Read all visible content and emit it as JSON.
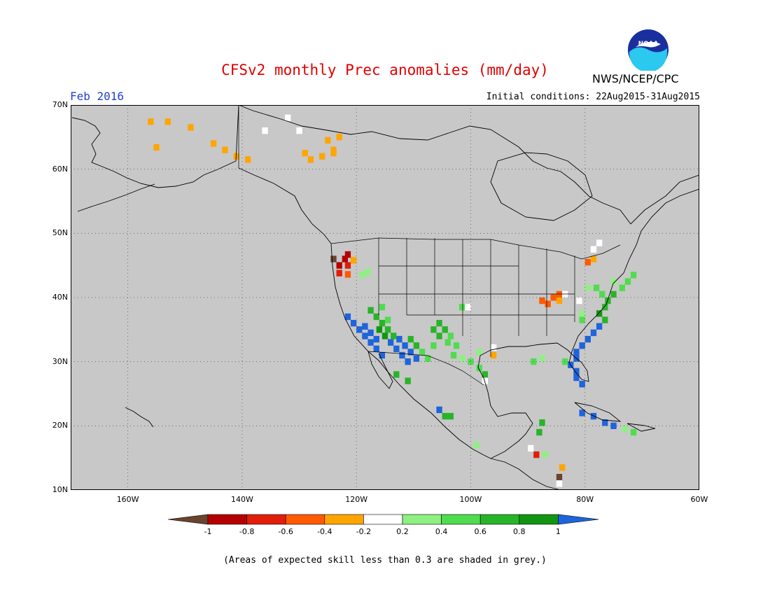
{
  "title": "CFSv2 monthly Prec anomalies (mm/day)",
  "month": "Feb 2016",
  "initial_conditions": "Initial conditions: 22Aug2015-31Aug2015",
  "agency": "NWS/NCEP/CPC",
  "logo_text": "NOAA",
  "skill_note": "(Areas of expected skill less than 0.3 are shaded in grey.)",
  "map": {
    "lon_range": [
      -170,
      -60
    ],
    "lat_range": [
      10,
      70
    ],
    "lat_labels": [
      "70N",
      "60N",
      "50N",
      "40N",
      "30N",
      "20N",
      "10N"
    ],
    "lat_values": [
      70,
      60,
      50,
      40,
      30,
      20,
      10
    ],
    "lon_labels": [
      "160W",
      "140W",
      "120W",
      "100W",
      "80W",
      "60W"
    ],
    "lon_values": [
      -160,
      -140,
      -120,
      -100,
      -80,
      -60
    ],
    "gridlines": true,
    "background_color": "#c8c8c8",
    "cells": [
      {
        "lon": -156,
        "lat": 67.4,
        "v": -0.3
      },
      {
        "lon": -153,
        "lat": 67.4,
        "v": -0.3
      },
      {
        "lon": -149,
        "lat": 66.5,
        "v": -0.3
      },
      {
        "lon": -155,
        "lat": 63.4,
        "v": -0.3
      },
      {
        "lon": -136,
        "lat": 66,
        "v": 0
      },
      {
        "lon": -130,
        "lat": 66,
        "v": 0
      },
      {
        "lon": -132,
        "lat": 68,
        "v": 0
      },
      {
        "lon": -145,
        "lat": 64,
        "v": -0.3
      },
      {
        "lon": -143,
        "lat": 63,
        "v": -0.3
      },
      {
        "lon": -141,
        "lat": 62,
        "v": -0.3
      },
      {
        "lon": -139,
        "lat": 61.5,
        "v": -0.3
      },
      {
        "lon": -129,
        "lat": 62.5,
        "v": -0.3
      },
      {
        "lon": -128,
        "lat": 61.5,
        "v": -0.3
      },
      {
        "lon": -126,
        "lat": 62,
        "v": -0.3
      },
      {
        "lon": -124,
        "lat": 63,
        "v": -0.3
      },
      {
        "lon": -125,
        "lat": 64.5,
        "v": -0.3
      },
      {
        "lon": -123,
        "lat": 65,
        "v": -0.3
      },
      {
        "lon": -124,
        "lat": 62.5,
        "v": -0.3
      },
      {
        "lon": -124,
        "lat": 46,
        "v": -1
      },
      {
        "lon": -123,
        "lat": 45,
        "v": -0.9
      },
      {
        "lon": -123,
        "lat": 43.8,
        "v": -0.7
      },
      {
        "lon": -122,
        "lat": 46,
        "v": -0.9
      },
      {
        "lon": -121.5,
        "lat": 45,
        "v": -0.7
      },
      {
        "lon": -121.5,
        "lat": 43.6,
        "v": -0.5
      },
      {
        "lon": -120.5,
        "lat": 45.8,
        "v": -0.3
      },
      {
        "lon": -121.5,
        "lat": 46.7,
        "v": -0.9
      },
      {
        "lon": -119,
        "lat": 43.5,
        "v": 0.3
      },
      {
        "lon": -118,
        "lat": 44,
        "v": 0.3
      },
      {
        "lon": -121.5,
        "lat": 37,
        "v": 1
      },
      {
        "lon": -120.5,
        "lat": 36,
        "v": 1
      },
      {
        "lon": -119.5,
        "lat": 35,
        "v": 1
      },
      {
        "lon": -118.5,
        "lat": 34,
        "v": 1
      },
      {
        "lon": -117.5,
        "lat": 33,
        "v": 1
      },
      {
        "lon": -116.5,
        "lat": 32,
        "v": 1
      },
      {
        "lon": -115.5,
        "lat": 31,
        "v": 1
      },
      {
        "lon": -118.5,
        "lat": 35.5,
        "v": 1
      },
      {
        "lon": -117.5,
        "lat": 34.5,
        "v": 1
      },
      {
        "lon": -116.5,
        "lat": 33.5,
        "v": 1
      },
      {
        "lon": -116,
        "lat": 35,
        "v": 0.9
      },
      {
        "lon": -115,
        "lat": 34,
        "v": 0.9
      },
      {
        "lon": -114,
        "lat": 33,
        "v": 1
      },
      {
        "lon": -113,
        "lat": 32,
        "v": 1
      },
      {
        "lon": -112,
        "lat": 31,
        "v": 1
      },
      {
        "lon": -111,
        "lat": 30,
        "v": 1
      },
      {
        "lon": -112.5,
        "lat": 33.5,
        "v": 1
      },
      {
        "lon": -111.5,
        "lat": 32.5,
        "v": 1
      },
      {
        "lon": -110.5,
        "lat": 31.5,
        "v": 1
      },
      {
        "lon": -109.5,
        "lat": 30.5,
        "v": 1
      },
      {
        "lon": -117.5,
        "lat": 38,
        "v": 0.7
      },
      {
        "lon": -116.5,
        "lat": 37,
        "v": 0.7
      },
      {
        "lon": -115.5,
        "lat": 36,
        "v": 0.7
      },
      {
        "lon": -114.5,
        "lat": 35,
        "v": 0.7
      },
      {
        "lon": -113.5,
        "lat": 34,
        "v": 0.7
      },
      {
        "lon": -115.5,
        "lat": 38.5,
        "v": 0.5
      },
      {
        "lon": -114.5,
        "lat": 36.5,
        "v": 0.5
      },
      {
        "lon": -110.5,
        "lat": 33.5,
        "v": 0.7
      },
      {
        "lon": -109.5,
        "lat": 32.5,
        "v": 0.7
      },
      {
        "lon": -108.5,
        "lat": 31.5,
        "v": 0.5
      },
      {
        "lon": -107.5,
        "lat": 30.5,
        "v": 0.5
      },
      {
        "lon": -106.5,
        "lat": 35,
        "v": 0.7
      },
      {
        "lon": -105.5,
        "lat": 34,
        "v": 0.7
      },
      {
        "lon": -104.5,
        "lat": 35,
        "v": 0.7
      },
      {
        "lon": -103.5,
        "lat": 34,
        "v": 0.5
      },
      {
        "lon": -105.5,
        "lat": 36,
        "v": 0.7
      },
      {
        "lon": -104,
        "lat": 33,
        "v": 0.5
      },
      {
        "lon": -102.5,
        "lat": 32.5,
        "v": 0.5
      },
      {
        "lon": -106.5,
        "lat": 32.5,
        "v": 0.5
      },
      {
        "lon": -103,
        "lat": 31,
        "v": 0.5
      },
      {
        "lon": -101.5,
        "lat": 30.5,
        "v": 0.3
      },
      {
        "lon": -100,
        "lat": 30,
        "v": 0.5
      },
      {
        "lon": -98.5,
        "lat": 29,
        "v": 0.5
      },
      {
        "lon": -97.5,
        "lat": 28,
        "v": 0.7
      },
      {
        "lon": -98.5,
        "lat": 31.5,
        "v": 0.3
      },
      {
        "lon": -97.5,
        "lat": 27,
        "v": 0
      },
      {
        "lon": -101.5,
        "lat": 38.5,
        "v": 0.5
      },
      {
        "lon": -100.5,
        "lat": 38.5,
        "v": 0
      },
      {
        "lon": -111,
        "lat": 27,
        "v": 0.7
      },
      {
        "lon": -113,
        "lat": 28,
        "v": 0.7
      },
      {
        "lon": -105.5,
        "lat": 22.5,
        "v": 1
      },
      {
        "lon": -104.5,
        "lat": 21.5,
        "v": 0.7
      },
      {
        "lon": -103.5,
        "lat": 21.5,
        "v": 0.7
      },
      {
        "lon": -96,
        "lat": 31,
        "v": -0.3
      },
      {
        "lon": -96,
        "lat": 32.2,
        "v": 0
      },
      {
        "lon": -87.5,
        "lat": 39.5,
        "v": -0.5
      },
      {
        "lon": -86.5,
        "lat": 39,
        "v": -0.5
      },
      {
        "lon": -85.5,
        "lat": 40,
        "v": -0.5
      },
      {
        "lon": -84.5,
        "lat": 40.5,
        "v": -0.5
      },
      {
        "lon": -84.5,
        "lat": 39.5,
        "v": -0.3
      },
      {
        "lon": -83.5,
        "lat": 40.5,
        "v": 0
      },
      {
        "lon": -81,
        "lat": 39.5,
        "v": 0
      },
      {
        "lon": -79.5,
        "lat": 41.5,
        "v": 0.3
      },
      {
        "lon": -78,
        "lat": 41.5,
        "v": 0.5
      },
      {
        "lon": -77,
        "lat": 40.5,
        "v": 0.5
      },
      {
        "lon": -76,
        "lat": 39.5,
        "v": 0.7
      },
      {
        "lon": -75,
        "lat": 40.5,
        "v": 0.7
      },
      {
        "lon": -75,
        "lat": 42.5,
        "v": 0.3
      },
      {
        "lon": -73.5,
        "lat": 41.5,
        "v": 0.5
      },
      {
        "lon": -72.5,
        "lat": 42.5,
        "v": 0.5
      },
      {
        "lon": -71.5,
        "lat": 43.5,
        "v": 0.5
      },
      {
        "lon": -76.5,
        "lat": 38.5,
        "v": 0.7
      },
      {
        "lon": -77.5,
        "lat": 37.5,
        "v": 0.9
      },
      {
        "lon": -76.5,
        "lat": 36.5,
        "v": 0.7
      },
      {
        "lon": -77.5,
        "lat": 35.5,
        "v": 1
      },
      {
        "lon": -78.5,
        "lat": 34.5,
        "v": 1
      },
      {
        "lon": -79.5,
        "lat": 33.5,
        "v": 1
      },
      {
        "lon": -80.5,
        "lat": 32.5,
        "v": 1
      },
      {
        "lon": -81.5,
        "lat": 31.5,
        "v": 1
      },
      {
        "lon": -81.5,
        "lat": 30.5,
        "v": 1
      },
      {
        "lon": -82.5,
        "lat": 29.5,
        "v": 1
      },
      {
        "lon": -81.5,
        "lat": 28.5,
        "v": 1
      },
      {
        "lon": -81.5,
        "lat": 27.5,
        "v": 1
      },
      {
        "lon": -80.5,
        "lat": 26.5,
        "v": 1
      },
      {
        "lon": -83.5,
        "lat": 30,
        "v": 0.5
      },
      {
        "lon": -89,
        "lat": 30,
        "v": 0.5
      },
      {
        "lon": -87.5,
        "lat": 30.5,
        "v": 0.3
      },
      {
        "lon": -80.5,
        "lat": 36.5,
        "v": 0.5
      },
      {
        "lon": -80.5,
        "lat": 37.5,
        "v": 0.3
      },
      {
        "lon": -79.5,
        "lat": 45.5,
        "v": -0.5
      },
      {
        "lon": -78.5,
        "lat": 46,
        "v": -0.3
      },
      {
        "lon": -78.5,
        "lat": 47.5,
        "v": 0
      },
      {
        "lon": -77.5,
        "lat": 48.5,
        "v": 0
      },
      {
        "lon": -80.5,
        "lat": 22,
        "v": 1
      },
      {
        "lon": -78.5,
        "lat": 21.5,
        "v": 1
      },
      {
        "lon": -76.5,
        "lat": 20.5,
        "v": 1
      },
      {
        "lon": -75,
        "lat": 20,
        "v": 1
      },
      {
        "lon": -73,
        "lat": 19.5,
        "v": 0.3
      },
      {
        "lon": -71.5,
        "lat": 19,
        "v": 0.5
      },
      {
        "lon": -87.5,
        "lat": 20.5,
        "v": 0.7
      },
      {
        "lon": -88,
        "lat": 19,
        "v": 0.7
      },
      {
        "lon": -89.5,
        "lat": 16.5,
        "v": 0
      },
      {
        "lon": -88.5,
        "lat": 15.5,
        "v": -0.7
      },
      {
        "lon": -87,
        "lat": 15.5,
        "v": 0.3
      },
      {
        "lon": -99,
        "lat": 17,
        "v": 0.3
      },
      {
        "lon": -84,
        "lat": 13.5,
        "v": -0.3
      },
      {
        "lon": -84.5,
        "lat": 12,
        "v": -1
      },
      {
        "lon": -84.5,
        "lat": 11,
        "v": 0
      }
    ]
  },
  "legend": {
    "labels": [
      "-1",
      "-0.8",
      "-0.6",
      "-0.4",
      "-0.2",
      "0.2",
      "0.4",
      "0.6",
      "0.8",
      "1"
    ],
    "colors": [
      "#6b4330",
      "#b40000",
      "#e01e0a",
      "#ff5a00",
      "#ffa500",
      "#ffffff",
      "#8ff082",
      "#4fdc4f",
      "#28b428",
      "#129612",
      "#1e64dc"
    ]
  }
}
